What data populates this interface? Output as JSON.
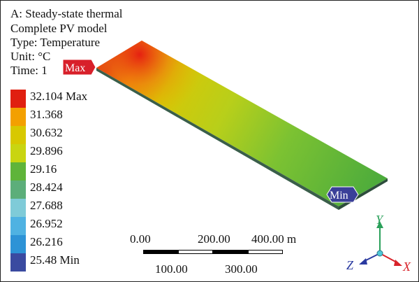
{
  "header": {
    "analysis": "A: Steady-state thermal",
    "model": "Complete PV model",
    "type": "Type: Temperature",
    "unit": "Unit: °C",
    "time": "Time: 1"
  },
  "legend": {
    "levels": [
      {
        "label": "32.104 Max",
        "color": "#e01f10"
      },
      {
        "label": "31.368",
        "color": "#f3a000"
      },
      {
        "label": "30.632",
        "color": "#d8c800"
      },
      {
        "label": "29.896",
        "color": "#c9d511"
      },
      {
        "label": "29.16",
        "color": "#5fb43a"
      },
      {
        "label": "28.424",
        "color": "#5cae7a"
      },
      {
        "label": "27.688",
        "color": "#7fcbd8"
      },
      {
        "label": "26.952",
        "color": "#4fb2e2"
      },
      {
        "label": "26.216",
        "color": "#2d93d6"
      },
      {
        "label": "25.48 Min",
        "color": "#3a4aa0"
      }
    ]
  },
  "markers": {
    "max_label": "Max",
    "min_label": "Min"
  },
  "scale_bar": {
    "top_labels": [
      "0.00",
      "200.00",
      "400.00 m"
    ],
    "bottom_labels": [
      "100.00",
      "300.00"
    ]
  },
  "triad": {
    "x_label": "X",
    "y_label": "Y",
    "z_label": "Z",
    "x_color": "#d8232a",
    "y_color": "#2aa05a",
    "z_color": "#2a3aa0"
  }
}
